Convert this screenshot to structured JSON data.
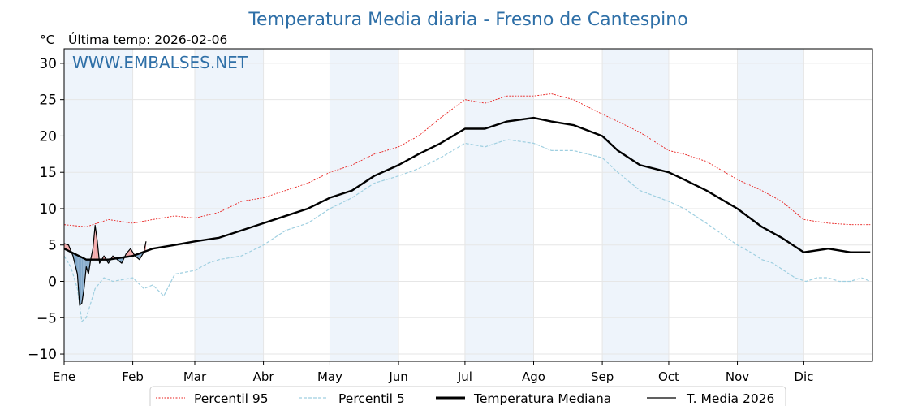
{
  "chart_data": {
    "type": "line",
    "title": "Temperatura Media diaria - Fresno de Cantespino",
    "unit_label": "°C",
    "last_temp_label": "Última temp: 2026-02-06",
    "watermark": "WWW.EMBALSES.NET",
    "ylim": [
      -11,
      32
    ],
    "yticks": [
      -10,
      -5,
      0,
      5,
      10,
      15,
      20,
      25,
      30
    ],
    "xlim": [
      0,
      365
    ],
    "months": [
      "Ene",
      "Feb",
      "Mar",
      "Abr",
      "May",
      "Jun",
      "Jul",
      "Ago",
      "Sep",
      "Oct",
      "Nov",
      "Dic"
    ],
    "grid": true,
    "legend_position": "bottom-center",
    "colors": {
      "p95": "#e8201e",
      "p5": "#9fcfe0",
      "median": "#000000",
      "current": "#000000",
      "above_fill": "#f4a6a6",
      "below_fill": "#7fa6c8",
      "month_band": "#eef4fb",
      "title": "#2e6fa7"
    },
    "series": [
      {
        "name": "Percentil 95",
        "x": [
          0,
          10,
          20,
          31,
          40,
          50,
          59,
          70,
          80,
          90,
          100,
          110,
          120,
          130,
          140,
          151,
          160,
          170,
          181,
          190,
          200,
          212,
          220,
          230,
          243,
          250,
          260,
          273,
          280,
          290,
          304,
          315,
          324,
          334,
          345,
          355,
          364
        ],
        "values": [
          7.8,
          7.5,
          8.5,
          8.0,
          8.5,
          9.0,
          8.7,
          9.5,
          11.0,
          11.5,
          12.5,
          13.5,
          15.0,
          16.0,
          17.5,
          18.5,
          20.0,
          22.5,
          25.0,
          24.5,
          25.5,
          25.5,
          25.8,
          25.0,
          23.0,
          22.0,
          20.5,
          18.0,
          17.5,
          16.5,
          14.0,
          12.5,
          11.0,
          8.5,
          8.0,
          7.8,
          7.8
        ]
      },
      {
        "name": "Percentil 5",
        "x": [
          0,
          3,
          6,
          8,
          10,
          14,
          18,
          22,
          31,
          36,
          40,
          45,
          50,
          59,
          65,
          70,
          80,
          90,
          100,
          110,
          120,
          130,
          140,
          151,
          160,
          170,
          181,
          190,
          200,
          212,
          220,
          230,
          243,
          250,
          260,
          273,
          280,
          290,
          304,
          310,
          315,
          320,
          325,
          330,
          335,
          340,
          345,
          350,
          355,
          360,
          364
        ],
        "values": [
          3.5,
          2.0,
          -1.0,
          -5.5,
          -5.0,
          -1.0,
          0.5,
          0.0,
          0.5,
          -1.0,
          -0.5,
          -2.0,
          1.0,
          1.5,
          2.5,
          3.0,
          3.5,
          5.0,
          7.0,
          8.0,
          10.0,
          11.5,
          13.5,
          14.5,
          15.5,
          17.0,
          19.0,
          18.5,
          19.5,
          19.0,
          18.0,
          18.0,
          17.0,
          15.0,
          12.5,
          11.0,
          10.0,
          8.0,
          5.0,
          4.0,
          3.0,
          2.5,
          1.5,
          0.5,
          0.0,
          0.5,
          0.5,
          0.0,
          0.0,
          0.5,
          0.0
        ]
      },
      {
        "name": "Temperatura Mediana",
        "x": [
          0,
          10,
          20,
          31,
          40,
          50,
          59,
          70,
          80,
          90,
          100,
          110,
          120,
          130,
          140,
          151,
          160,
          170,
          181,
          190,
          200,
          212,
          220,
          230,
          243,
          250,
          260,
          273,
          280,
          290,
          304,
          315,
          324,
          334,
          345,
          355,
          364
        ],
        "values": [
          4.5,
          3.0,
          3.0,
          3.5,
          4.5,
          5.0,
          5.5,
          6.0,
          7.0,
          8.0,
          9.0,
          10.0,
          11.5,
          12.5,
          14.5,
          16.0,
          17.5,
          19.0,
          21.0,
          21.0,
          22.0,
          22.5,
          22.0,
          21.5,
          20.0,
          18.0,
          16.0,
          15.0,
          14.0,
          12.5,
          10.0,
          7.5,
          6.0,
          4.0,
          4.5,
          4.0,
          4.0
        ]
      },
      {
        "name": "T. Media 2026",
        "x": [
          0,
          2,
          4,
          6,
          7,
          8,
          9,
          10,
          11,
          12,
          13,
          14,
          15,
          16,
          18,
          20,
          22,
          24,
          26,
          28,
          30,
          32,
          34,
          36,
          37
        ],
        "values": [
          5.2,
          5.0,
          3.5,
          1.0,
          -3.3,
          -3.0,
          -1.0,
          2.0,
          1.0,
          3.0,
          4.5,
          7.7,
          5.5,
          2.5,
          3.5,
          2.5,
          3.5,
          3.0,
          2.5,
          3.8,
          4.5,
          3.5,
          3.0,
          4.0,
          5.5
        ]
      }
    ]
  }
}
